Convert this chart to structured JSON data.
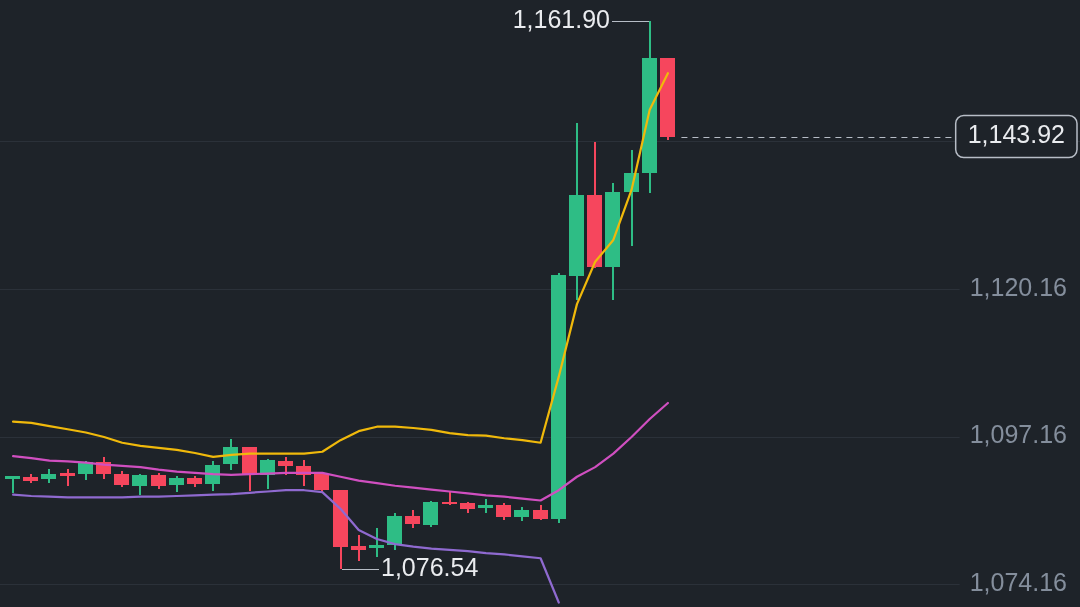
{
  "chart_data": {
    "type": "candlestick",
    "categories": [
      null,
      null,
      null,
      null,
      null,
      null,
      null,
      null,
      null,
      null,
      null,
      null,
      null,
      null,
      null,
      null,
      null,
      null,
      null,
      null,
      null,
      null,
      null,
      null,
      null,
      null,
      null,
      null,
      null,
      null,
      null,
      null,
      null,
      null,
      null,
      null,
      null
    ],
    "ohlc": [
      [
        1090.6,
        1091.0,
        1088.4,
        1091.0
      ],
      [
        1090.8,
        1091.3,
        1090.0,
        1090.3
      ],
      [
        1090.5,
        1092.1,
        1090.0,
        1091.4
      ],
      [
        1091.5,
        1092.0,
        1089.5,
        1091.0
      ],
      [
        1091.3,
        1093.3,
        1090.4,
        1093.2
      ],
      [
        1093.2,
        1093.9,
        1090.6,
        1091.4
      ],
      [
        1091.4,
        1091.7,
        1089.4,
        1089.6
      ],
      [
        1089.5,
        1091.2,
        1088.2,
        1091.2
      ],
      [
        1091.2,
        1091.4,
        1089.0,
        1089.5
      ],
      [
        1089.6,
        1090.9,
        1088.6,
        1090.7
      ],
      [
        1090.7,
        1091.0,
        1089.4,
        1089.8
      ],
      [
        1089.8,
        1093.3,
        1088.8,
        1092.7
      ],
      [
        1092.9,
        1096.7,
        1092.0,
        1095.5
      ],
      [
        1095.5,
        1095.5,
        1088.8,
        1091.2
      ],
      [
        1091.2,
        1093.6,
        1089.1,
        1093.5
      ],
      [
        1093.4,
        1093.9,
        1091.2,
        1092.6
      ],
      [
        1092.5,
        1093.5,
        1089.6,
        1091.2
      ],
      [
        1091.4,
        1091.6,
        1088.6,
        1088.8
      ],
      [
        1088.8,
        1088.8,
        1076.54,
        1079.9
      ],
      [
        1080.1,
        1081.7,
        1077.9,
        1079.5
      ],
      [
        1079.8,
        1082.9,
        1078.5,
        1080.3
      ],
      [
        1080.3,
        1085.2,
        1079.5,
        1084.8
      ],
      [
        1084.8,
        1085.6,
        1083.0,
        1083.5
      ],
      [
        1083.4,
        1087.1,
        1083.1,
        1087.0
      ],
      [
        1087.0,
        1088.6,
        1086.5,
        1086.6
      ],
      [
        1086.8,
        1086.9,
        1085.3,
        1085.8
      ],
      [
        1086.0,
        1087.4,
        1085.3,
        1086.5
      ],
      [
        1086.5,
        1086.7,
        1084.2,
        1084.7
      ],
      [
        1084.7,
        1086.1,
        1084.1,
        1085.7
      ],
      [
        1085.7,
        1086.4,
        1084.2,
        1084.3
      ],
      [
        1084.3,
        1122.6,
        1083.7,
        1122.3
      ],
      [
        1122.2,
        1145.9,
        1118.5,
        1134.8
      ],
      [
        1134.8,
        1143.0,
        1123.5,
        1123.6
      ],
      [
        1123.6,
        1136.6,
        1118.5,
        1135.2
      ],
      [
        1135.2,
        1141.8,
        1127.0,
        1138.2
      ],
      [
        1138.2,
        1161.9,
        1135.2,
        1156.1
      ],
      [
        1156.1,
        1156.1,
        1143.5,
        1143.92
      ]
    ],
    "colors": [
      "#2ebd85",
      "#f6465d",
      "#2ebd85",
      "#f6465d",
      "#2ebd85",
      "#f6465d",
      "#f6465d",
      "#2ebd85",
      "#f6465d",
      "#2ebd85",
      "#f6465d",
      "#2ebd85",
      "#2ebd85",
      "#f6465d",
      "#2ebd85",
      "#f6465d",
      "#f6465d",
      "#f6465d",
      "#f6465d",
      "#f6465d",
      "#2ebd85",
      "#2ebd85",
      "#f6465d",
      "#2ebd85",
      "#f6465d",
      "#f6465d",
      "#2ebd85",
      "#f6465d",
      "#2ebd85",
      "#f6465d",
      "#2ebd85",
      "#2ebd85",
      "#f6465d",
      "#2ebd85",
      "#2ebd85",
      "#2ebd85",
      "#f6465d"
    ],
    "series": [
      {
        "type": "line",
        "color": "#f0b90b",
        "values": [
          1099.5,
          1099.3,
          1098.8,
          1098.3,
          1097.8,
          1097.1,
          1096.2,
          1095.7,
          1095.4,
          1095.1,
          1094.6,
          1094.0,
          1094.3,
          1094.5,
          1094.5,
          1094.5,
          1094.5,
          1094.8,
          1096.6,
          1098.0,
          1098.7,
          1098.7,
          1098.5,
          1098.2,
          1097.7,
          1097.4,
          1097.3,
          1096.9,
          1096.6,
          1096.2,
          1106.5,
          1117.8,
          1124.4,
          1127.8,
          1135.6,
          1148.1,
          1153.8
        ]
      },
      {
        "type": "line",
        "color": "#d04fc0",
        "values": [
          1094.1,
          1093.8,
          1093.4,
          1093.3,
          1093.1,
          1092.8,
          1092.6,
          1092.4,
          1092.0,
          1091.7,
          1091.5,
          1091.3,
          1091.2,
          1091.3,
          1091.4,
          1091.5,
          1091.5,
          1091.5,
          1090.9,
          1090.3,
          1089.9,
          1089.5,
          1089.2,
          1088.9,
          1088.6,
          1088.3,
          1088.0,
          1087.8,
          1087.5,
          1087.2,
          1088.8,
          1090.9,
          1092.4,
          1094.5,
          1097.1,
          1099.9,
          1102.4
        ]
      },
      {
        "type": "line",
        "color": "#8f6ad0",
        "values": [
          1088.1,
          1087.9,
          1087.8,
          1087.7,
          1087.7,
          1087.7,
          1087.7,
          1087.8,
          1087.8,
          1087.9,
          1088.0,
          1088.1,
          1088.2,
          1088.4,
          1088.6,
          1088.8,
          1088.8,
          1088.5,
          1085.9,
          1082.6,
          1081.2,
          1080.4,
          1080.0,
          1079.7,
          1079.5,
          1079.3,
          1079.0,
          1078.8,
          1078.5,
          1078.2,
          1071.3,
          null,
          null,
          null,
          null,
          null,
          null
        ]
      }
    ],
    "ylim": [
      1070.6,
      1165.2
    ],
    "yticks": [
      {
        "value": 1074.16,
        "label": "1,074.16"
      },
      {
        "value": 1097.16,
        "label": "1,097.16"
      },
      {
        "value": 1120.16,
        "label": "1,120.16"
      },
      {
        "value": 1143.17,
        "label": null
      }
    ],
    "grid": "y",
    "tick_labels": "y",
    "ref_lines": [
      {
        "axis": "y",
        "value": 1143.92,
        "label": "1,143.92",
        "color": "#b7bdc6",
        "line_style": "dashed"
      }
    ],
    "annotations": [
      "1,161.90",
      "1,076.54"
    ]
  }
}
